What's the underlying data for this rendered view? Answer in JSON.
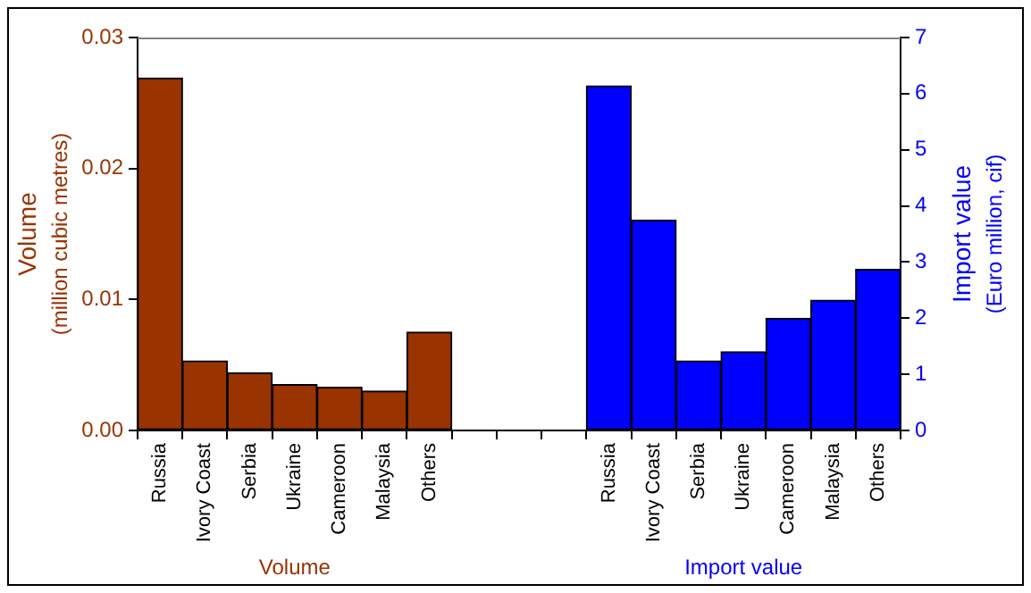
{
  "chart_data": {
    "type": "bar",
    "categories": [
      "Russia",
      "Ivory Coast",
      "Serbia",
      "Ukraine",
      "Cameroon",
      "Malaysia",
      "Others",
      null,
      null,
      null,
      "Russia",
      "Ivory Coast",
      "Serbia",
      "Ukraine",
      "Cameroon",
      "Malaysia",
      "Others"
    ],
    "series": [
      {
        "name": "Volume",
        "color": "#993300",
        "values": [
          0.0269,
          0.0053,
          0.0044,
          0.0035,
          0.0033,
          0.003,
          0.0075,
          null,
          null,
          null,
          null,
          null,
          null,
          null,
          null,
          null,
          null
        ]
      },
      {
        "name": "Import value",
        "color": "#0000ff",
        "axis": "y2",
        "values": [
          null,
          null,
          null,
          null,
          null,
          null,
          null,
          null,
          null,
          null,
          6.14,
          3.75,
          1.24,
          1.4,
          2.0,
          2.32,
          2.87
        ]
      }
    ],
    "ylabel": "Volume\n(million cubic metres)",
    "y2label": "Import value\n(Euro million, cif)",
    "ylim": [
      0,
      0.03
    ],
    "yticks": [
      {
        "value": 0,
        "label": "0.00"
      },
      {
        "value": 0.01,
        "label": "0.01"
      },
      {
        "value": 0.02,
        "label": "0.02"
      },
      {
        "value": 0.03,
        "label": "0.03"
      }
    ],
    "y2lim": [
      0,
      7
    ],
    "y2ticks": [
      0,
      1,
      2,
      3,
      4,
      5,
      6,
      7
    ],
    "grid": false,
    "legend": false
  }
}
